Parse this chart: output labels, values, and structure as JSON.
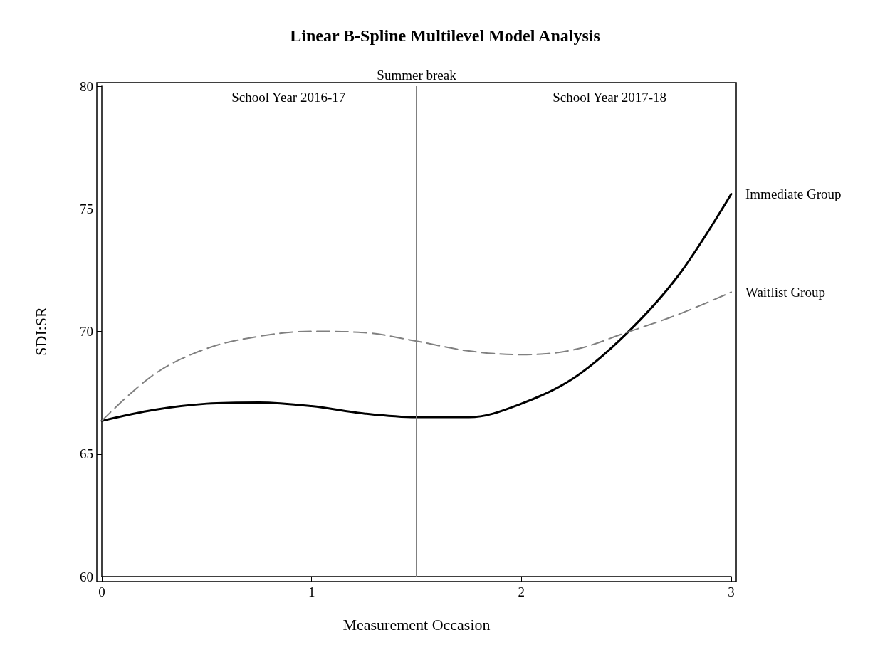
{
  "chart_data": {
    "type": "line",
    "title": "Linear B-Spline Multilevel Model Analysis",
    "xlabel": "Measurement Occasion",
    "ylabel": "SDI:SR",
    "x": [
      0,
      0.25,
      0.5,
      0.75,
      1,
      1.25,
      1.5,
      1.75,
      2,
      2.25,
      2.5,
      2.75,
      3
    ],
    "series": [
      {
        "name": "Immediate Group",
        "color": "#000000",
        "line_style": "solid",
        "values": [
          66.35,
          66.8,
          67.05,
          67.1,
          66.95,
          66.65,
          66.5,
          66.5,
          67.05,
          68.1,
          69.9,
          72.3,
          75.6
        ]
      },
      {
        "name": "Waitlist Group",
        "color": "#808080",
        "line_style": "dashed",
        "values": [
          66.35,
          68.25,
          69.3,
          69.8,
          70.0,
          69.95,
          69.6,
          69.2,
          69.05,
          69.25,
          69.95,
          70.7,
          71.6
        ]
      }
    ],
    "xlim": [
      0,
      3
    ],
    "xticks": [
      0,
      1,
      2,
      3
    ],
    "ylim": [
      60,
      80
    ],
    "yticks": [
      60,
      65,
      70,
      75,
      80
    ],
    "ref_lines": [
      {
        "axis": "x",
        "value": 1.5,
        "label": "Summer break",
        "color": "#808080",
        "line_style": "solid"
      }
    ],
    "annotations": [
      "School Year 2016-17",
      "School Year 2017-18"
    ],
    "grid": false,
    "legend": false,
    "marker": "none"
  }
}
